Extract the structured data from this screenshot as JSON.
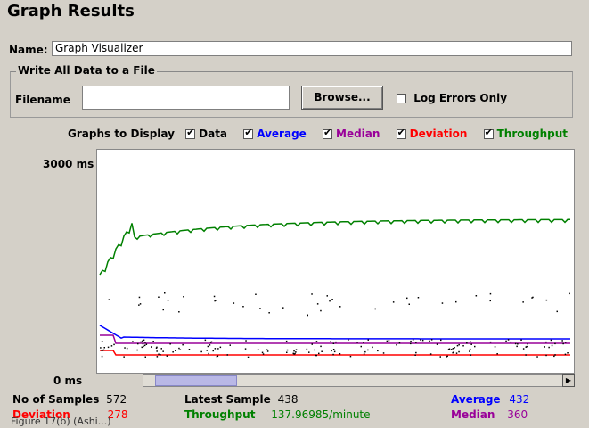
{
  "title": "Graph Results",
  "name": {
    "label": "Name:",
    "value": "Graph Visualizer"
  },
  "file_group": {
    "legend": "Write All Data to a File",
    "filename_label": "Filename",
    "filename_value": "",
    "browse_label": "Browse...",
    "log_errors_label": "Log Errors Only"
  },
  "graphs": {
    "label": "Graphs to Display",
    "items": [
      {
        "label": "Data",
        "color": "#000000",
        "checked": true
      },
      {
        "label": "Average",
        "color": "#0000ff",
        "checked": true
      },
      {
        "label": "Median",
        "color": "#990099",
        "checked": true
      },
      {
        "label": "Deviation",
        "color": "#ff0000",
        "checked": true
      },
      {
        "label": "Throughput",
        "color": "#008000",
        "checked": true
      }
    ]
  },
  "chart": {
    "y_top_label": "3000 ms",
    "y_bottom_label": "0 ms"
  },
  "stats": {
    "samples_label": "No of Samples",
    "samples_value": "572",
    "latest_label": "Latest Sample",
    "latest_value": "438",
    "average_label": "Average",
    "average_value": "432",
    "deviation_label": "Deviation",
    "deviation_value": "278",
    "throughput_label": "Throughput",
    "throughput_value": "137.96985/minute",
    "median_label": "Median",
    "median_value": "360"
  },
  "status_text": "Figure 17(b) (Ashi...)"
}
